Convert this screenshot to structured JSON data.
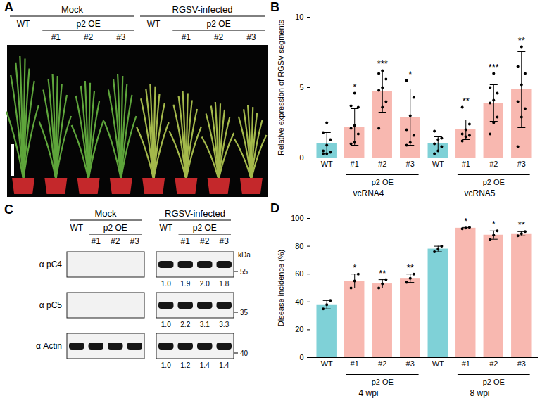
{
  "photo_panel": {
    "panel": "A",
    "conditions": [
      "Mock",
      "RGSV-infected"
    ],
    "lanes": [
      "WT",
      "#1",
      "#2",
      "#3"
    ],
    "bracket": {
      "label": "p2 OE",
      "lanes": [
        "#1",
        "#2",
        "#3"
      ]
    }
  },
  "blot_panel": {
    "panel": "C",
    "conditions": [
      "Mock",
      "RGSV-infected"
    ],
    "lanes": [
      "WT",
      "#1",
      "#2",
      "#3"
    ],
    "bracket": {
      "label": "p2 OE",
      "lanes": [
        "#1",
        "#2",
        "#3"
      ]
    },
    "unit": "kDa",
    "rows": [
      {
        "label": "α pC4",
        "size_kda": 55,
        "mock_signal": false,
        "quantification": [
          "1.0",
          "1.9",
          "2.0",
          "1.8"
        ]
      },
      {
        "label": "α pC5",
        "size_kda": 35,
        "mock_signal": false,
        "quantification": [
          "1.0",
          "2.2",
          "3.1",
          "3.3"
        ]
      },
      {
        "label": "α Actin",
        "size_kda": 40,
        "mock_signal": true,
        "quantification": [
          "1.0",
          "1.2",
          "1.4",
          "1.4"
        ]
      }
    ]
  },
  "chart_data": [
    {
      "type": "bar",
      "panel": "B",
      "y_label": "Relative expression of RGSV segments",
      "categories": [
        "WT",
        "#1",
        "#2",
        "#3"
      ],
      "colors": [
        "#7fd1d7",
        "#f8b8b0",
        "#f8b8b0",
        "#f8b8b0"
      ],
      "bracket": {
        "label": "p2 OE",
        "categories": [
          "#1",
          "#2",
          "#3"
        ]
      },
      "ylim": [
        0,
        10
      ],
      "yticks": [
        0,
        5,
        10
      ],
      "groups": [
        {
          "name": "vcRNA4",
          "values": [
            1.0,
            2.2,
            4.75,
            2.9
          ],
          "errors": [
            0.8,
            1.3,
            1.5,
            2.0
          ],
          "points": [
            [
              0.3,
              0.3,
              0.4,
              0.5,
              0.9,
              1.3,
              1.8,
              2.5
            ],
            [
              1.0,
              1.1,
              1.7,
              2.1,
              2.3,
              3.6,
              3.7,
              4.6
            ],
            [
              2.1,
              3.6,
              4.0,
              4.8,
              5.0,
              5.6,
              6.0,
              6.2
            ],
            [
              0.9,
              1.1,
              1.6,
              2.0,
              3.0,
              4.3,
              5.5
            ]
          ],
          "significance": [
            null,
            "*",
            "***",
            "*"
          ]
        },
        {
          "name": "vcRNA5",
          "values": [
            1.0,
            2.0,
            3.9,
            4.85
          ],
          "errors": [
            0.5,
            0.7,
            1.3,
            2.7
          ],
          "points": [
            [
              0.3,
              0.5,
              0.8,
              1.0,
              1.3,
              1.4,
              1.9
            ],
            [
              1.2,
              1.5,
              1.6,
              1.7,
              2.0,
              2.4,
              3.6
            ],
            [
              1.7,
              2.5,
              2.9,
              3.9,
              4.1,
              4.6,
              5.0,
              6.0
            ],
            [
              0.8,
              2.9,
              3.5,
              4.0,
              5.2,
              6.0,
              6.5,
              7.9
            ]
          ],
          "significance": [
            null,
            "**",
            "***",
            "**"
          ]
        }
      ]
    },
    {
      "type": "bar",
      "panel": "D",
      "y_label": "Disease incidence (%)",
      "categories": [
        "WT",
        "#1",
        "#2",
        "#3"
      ],
      "colors": [
        "#7fd1d7",
        "#f8b8b0",
        "#f8b8b0",
        "#f8b8b0"
      ],
      "bracket": {
        "label": "p2 OE",
        "categories": [
          "#1",
          "#2",
          "#3"
        ]
      },
      "ylim": [
        0,
        100
      ],
      "yticks": [
        0,
        20,
        40,
        60,
        80,
        100
      ],
      "groups": [
        {
          "name": "4 wpi",
          "values": [
            38,
            55,
            53,
            57
          ],
          "errors": [
            3,
            5,
            3,
            3
          ],
          "points": [
            [
              35,
              38,
              41
            ],
            [
              50,
              55,
              60
            ],
            [
              50,
              53,
              56
            ],
            [
              54,
              57,
              60
            ]
          ],
          "significance": [
            null,
            "*",
            "**",
            "**"
          ]
        },
        {
          "name": "8 wpi",
          "values": [
            78,
            93,
            88,
            89
          ],
          "errors": [
            2,
            0.5,
            3,
            1.5
          ],
          "points": [
            [
              76,
              78,
              80
            ],
            [
              92.5,
              93,
              93.5
            ],
            [
              85,
              88,
              91
            ],
            [
              87.5,
              89,
              90.5
            ]
          ],
          "significance": [
            null,
            "*",
            "*",
            "**"
          ]
        }
      ]
    }
  ]
}
